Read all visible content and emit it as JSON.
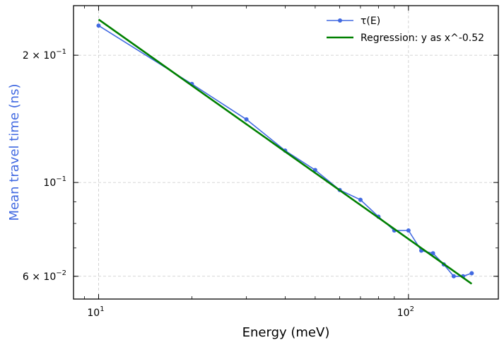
{
  "chart_data": {
    "type": "line",
    "xlabel": "Energy (meV)",
    "ylabel": "Mean travel time (ns)",
    "xscale": "log",
    "yscale": "log",
    "xlim": [
      8.3,
      195
    ],
    "ylim": [
      0.053,
      0.262
    ],
    "grid": true,
    "legend_position": "top-right",
    "x_ticks": [
      {
        "value": 10,
        "label": "10",
        "sup": "1"
      },
      {
        "value": 100,
        "label": "10",
        "sup": "2"
      }
    ],
    "y_ticks": [
      {
        "value": 0.06,
        "label": "6 × 10",
        "sup": "−2"
      },
      {
        "value": 0.1,
        "label": "10",
        "sup": "−1"
      },
      {
        "value": 0.2,
        "label": "2 × 10",
        "sup": "−1"
      }
    ],
    "series": [
      {
        "name": "τ(E)",
        "color": "#4169e1",
        "marker": "circle",
        "x": [
          10,
          20,
          30,
          40,
          50,
          60,
          70,
          80,
          90,
          100,
          110,
          120,
          130,
          140,
          150,
          160
        ],
        "y": [
          0.235,
          0.171,
          0.141,
          0.119,
          0.107,
          0.096,
          0.091,
          0.083,
          0.077,
          0.077,
          0.069,
          0.068,
          0.064,
          0.06,
          0.06,
          0.061
        ]
      },
      {
        "name": "Regression: y as x^-0.52",
        "color": "#008000",
        "marker": "none",
        "x": [
          10,
          160
        ],
        "y": [
          0.243,
          0.0576
        ]
      }
    ]
  }
}
